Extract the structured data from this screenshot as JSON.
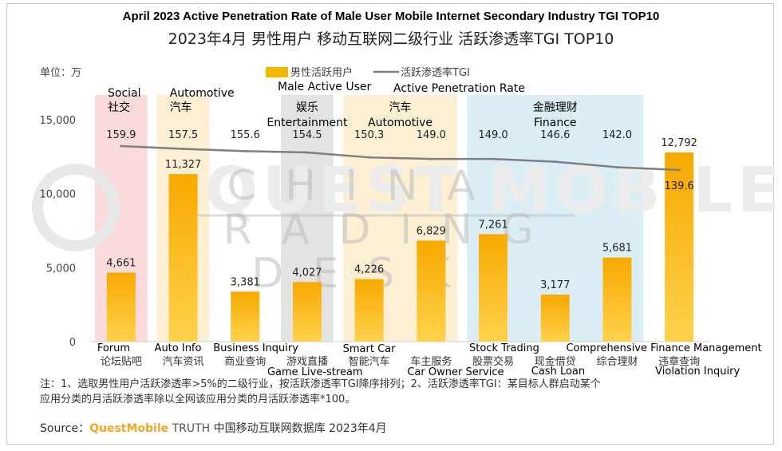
{
  "header": {
    "title_en": "April 2023 Active Penetration Rate of Male User Mobile Internet Secondary Industry TGI TOP10",
    "title_cn": "2023年4月 男性用户 移动互联网二级行业 活跃渗透率TGI TOP10"
  },
  "watermark": {
    "questmobile": "QUEST MOBILE",
    "lines": [
      "C H I N A",
      "T R A D I N G",
      "D E S K"
    ]
  },
  "chart_data": {
    "type": "bar",
    "unit_label": "单位：万",
    "categories": [
      "论坛贴吧",
      "汽车资讯",
      "商业查询",
      "游戏直播",
      "智能汽车",
      "车主服务",
      "股票交易",
      "现金借贷",
      "综合理财",
      "违章查询"
    ],
    "categories_en": [
      "Forum",
      "Auto Info",
      "Business Inquiry",
      "Game Live-stream",
      "Smart Car",
      "Car Owner Service",
      "Stock Trading",
      "Cash Loan",
      "Comprehensive Finance Management",
      "Violation Inquiry"
    ],
    "series": [
      {
        "name": "男性活跃用户",
        "name_en": "Male Active User",
        "type": "bar",
        "color": "#f5b800",
        "values": [
          4661,
          11327,
          3381,
          4027,
          4226,
          6829,
          7261,
          3177,
          5681,
          12792
        ],
        "labels": [
          "4,661",
          "11,327",
          "3,381",
          "4,027",
          "4,226",
          "6,829",
          "7,261",
          "3,177",
          "5,681",
          "12,792"
        ]
      },
      {
        "name": "活跃渗透率TGI",
        "name_en": "Active Penetration Rate",
        "type": "line",
        "color": "#7f7f7f",
        "values": [
          159.9,
          157.5,
          155.6,
          154.5,
          150.3,
          149.0,
          149.0,
          146.6,
          142.0,
          139.6
        ],
        "labels": [
          "159.9",
          "157.5",
          "155.6",
          "154.5",
          "150.3",
          "149.0",
          "149.0",
          "146.6",
          "142.0",
          "139.6"
        ]
      }
    ],
    "y_axis": {
      "min": 0,
      "max": 15000,
      "ticks": [
        0,
        5000,
        10000,
        15000
      ],
      "tick_labels": [
        "0",
        "5,000",
        "10,000",
        "15,000"
      ]
    },
    "groups": [
      {
        "cn": "社交",
        "en": "Social",
        "start": 0,
        "end": 0,
        "color": "#f8cfcf"
      },
      {
        "cn": "汽车",
        "en": "Automotive",
        "start": 1,
        "end": 1,
        "color": "#fbe9c6"
      },
      {
        "cn": "娱乐",
        "en": "Entertainment",
        "start": 3,
        "end": 3,
        "color": "#d9d9d9"
      },
      {
        "cn": "汽车",
        "en": "Automotive",
        "start": 4,
        "end": 5,
        "color": "#fbe9c6"
      },
      {
        "cn": "金融理财",
        "en": "Finance",
        "start": 6,
        "end": 8,
        "color": "#cfe8f3"
      }
    ],
    "legend_position": "top"
  },
  "footer": {
    "note_line1": "注：1、选取男性用户活跃渗透率>5%的二级行业，按活跃渗透率TGI降序排列；2、活跃渗透率TGI：某目标人群启动某个",
    "note_line2": "应用分类的月活跃渗透率除以全网该应用分类的月活跃渗透率*100。",
    "source_prefix": "Source：",
    "source_brand": "QuestMobile",
    "source_truth": " TRUTH",
    "source_rest": " 中国移动互联网数据库 2023年4月"
  }
}
